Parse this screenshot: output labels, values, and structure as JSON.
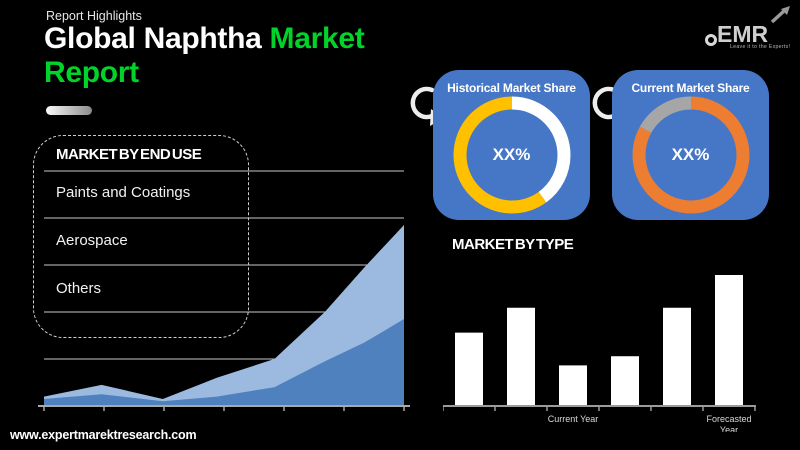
{
  "page": {
    "background": "#000000"
  },
  "header": {
    "eyebrow": "Report Highlights",
    "title_main": "Global Naphtha",
    "title_accent": "Market Report",
    "accent_color": "#00D42A"
  },
  "logo": {
    "name": "EMR",
    "tagline": "Leave it to the Experts!"
  },
  "end_use": {
    "title": "MARKET BY END USE",
    "items": [
      "Paints and Coatings",
      "Aerospace",
      "Others"
    ]
  },
  "share_section": {
    "card_color": "#4677C6",
    "cards": [
      {
        "title": "Historical Market Share",
        "center_label": "XX%"
      },
      {
        "title": "Current Market Share",
        "center_label": "XX%"
      }
    ]
  },
  "type_section": {
    "title": "MARKET BY TYPE"
  },
  "footer": {
    "url": "www.expertmarektresearch.com"
  },
  "chart_data": [
    {
      "id": "end-use-trend",
      "type": "area",
      "title": "",
      "x_percent": [
        0,
        16,
        33,
        48,
        64,
        78,
        89,
        100
      ],
      "series": [
        {
          "name": "upper-layer",
          "color": "#9CB9DF",
          "values": [
            4,
            9,
            3,
            12,
            20,
            40,
            59,
            77
          ]
        },
        {
          "name": "lower-layer",
          "color": "#4E81BD",
          "values": [
            3,
            5,
            2,
            4,
            8,
            19,
            27,
            37
          ]
        }
      ],
      "ylim": [
        0,
        100
      ],
      "gridline_count": 5,
      "grid_color": "#C9C9C9",
      "axis_color": "#A9A9A9",
      "tick_count": 7,
      "legend": "none"
    },
    {
      "id": "historical-market-share",
      "type": "donut",
      "title": "Historical Market Share",
      "center_label": "XX%",
      "slices": [
        {
          "name": "highlight-segment",
          "value": 40,
          "color": "#FFFFFF"
        },
        {
          "name": "main-segment",
          "value": 60,
          "color": "#FFC000"
        }
      ]
    },
    {
      "id": "current-market-share",
      "type": "donut",
      "title": "Current Market Share",
      "center_label": "XX%",
      "slices": [
        {
          "name": "main-segment",
          "value": 83,
          "color": "#ED7D31"
        },
        {
          "name": "highlight-segment",
          "value": 17,
          "color": "#A6A6A6"
        }
      ]
    },
    {
      "id": "market-by-type",
      "type": "bar",
      "title": "MARKET BY TYPE",
      "values": [
        56,
        75,
        31,
        38,
        75,
        100
      ],
      "ylim": [
        0,
        100
      ],
      "bar_color": "#FFFFFF",
      "axis_color": "#9B9B9B",
      "label_color": "#D9D9D9",
      "x_labels": [
        {
          "index": 2,
          "lines": [
            "Current Year"
          ]
        },
        {
          "index": 5,
          "lines": [
            "Forecasted",
            "Year"
          ]
        }
      ],
      "legend": "none"
    }
  ]
}
